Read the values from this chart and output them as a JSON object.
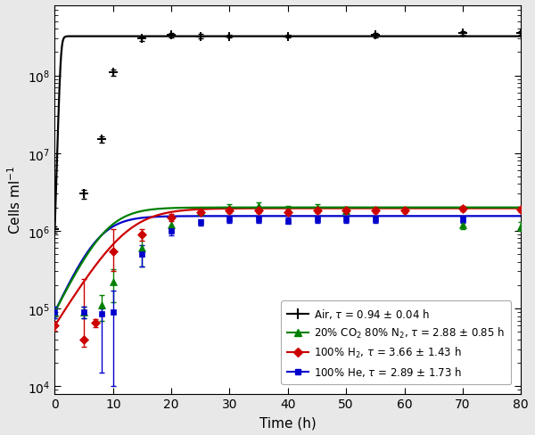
{
  "xlabel": "Time (h)",
  "ylabel": "Cells ml$^{-1}$",
  "xlim": [
    0,
    80
  ],
  "ylim_log": [
    8000,
    800000000.0
  ],
  "ytick_vals": [
    10000.0,
    100000.0,
    1000000.0,
    10000000.0,
    100000000.0
  ],
  "xticks": [
    0,
    10,
    20,
    30,
    40,
    50,
    60,
    70,
    80
  ],
  "air_color": "black",
  "co2_color": "#008000",
  "h2_color": "#cc0000",
  "he_color": "#0000cc",
  "air_params": {
    "N0": 1050000.0,
    "K": 320000000.0,
    "r": 5.5
  },
  "co2_params": {
    "N0": 90000.0,
    "K": 2000000.0,
    "r": 0.35
  },
  "h2_params": {
    "N0": 60000.0,
    "K": 1950000.0,
    "r": 0.28
  },
  "he_params": {
    "N0": 90000.0,
    "K": 1550000.0,
    "r": 0.38
  },
  "air_data_x": [
    0,
    5,
    8,
    10,
    15,
    20,
    25,
    30,
    40,
    55,
    70,
    80
  ],
  "air_data_y": [
    1050000.0,
    3000000.0,
    15000000.0,
    110000000.0,
    300000000.0,
    330000000.0,
    320000000.0,
    320000000.0,
    320000000.0,
    330000000.0,
    350000000.0,
    350000000.0
  ],
  "air_data_yerr_lo": [
    100000.0,
    400000.0,
    1500000.0,
    10000000.0,
    20000000.0,
    20000000.0,
    20000000.0,
    15000000.0,
    15000000.0,
    20000000.0,
    20000000.0,
    20000000.0
  ],
  "air_data_yerr_hi": [
    100000.0,
    400000.0,
    1500000.0,
    10000000.0,
    20000000.0,
    20000000.0,
    20000000.0,
    15000000.0,
    15000000.0,
    20000000.0,
    20000000.0,
    20000000.0
  ],
  "co2_data_x": [
    0,
    5,
    8,
    10,
    15,
    20,
    25,
    30,
    35,
    40,
    45,
    50,
    70,
    80
  ],
  "co2_data_y": [
    90000.0,
    90000.0,
    110000.0,
    220000.0,
    600000.0,
    1200000.0,
    1800000.0,
    2000000.0,
    2100000.0,
    1900000.0,
    2000000.0,
    1850000.0,
    1200000.0,
    1150000.0
  ],
  "co2_data_yerr": [
    15000.0,
    15000.0,
    40000.0,
    100000.0,
    250000.0,
    200000.0,
    200000.0,
    200000.0,
    200000.0,
    200000.0,
    200000.0,
    200000.0,
    150000.0,
    150000.0
  ],
  "h2_data_x": [
    0,
    5,
    7,
    10,
    15,
    20,
    25,
    30,
    35,
    40,
    45,
    50,
    55,
    60,
    70,
    80
  ],
  "h2_data_y": [
    60000.0,
    40000.0,
    65000.0,
    550000.0,
    900000.0,
    1500000.0,
    1750000.0,
    1850000.0,
    1850000.0,
    1750000.0,
    1850000.0,
    1850000.0,
    1850000.0,
    1850000.0,
    1950000.0,
    1900000.0
  ],
  "h2_data_yerr_lo": [
    8000.0,
    8000.0,
    8000.0,
    250000.0,
    150000.0,
    150000.0,
    150000.0,
    150000.0,
    150000.0,
    150000.0,
    150000.0,
    150000.0,
    150000.0,
    150000.0,
    150000.0,
    150000.0
  ],
  "h2_data_yerr_hi": [
    8000.0,
    200000.0,
    8000.0,
    500000.0,
    150000.0,
    150000.0,
    150000.0,
    150000.0,
    150000.0,
    150000.0,
    150000.0,
    150000.0,
    150000.0,
    150000.0,
    150000.0,
    150000.0
  ],
  "he_data_x": [
    0,
    5,
    8,
    10,
    15,
    20,
    25,
    30,
    35,
    40,
    45,
    50,
    55,
    70
  ],
  "he_data_y": [
    90000.0,
    90000.0,
    85000.0,
    90000.0,
    500000.0,
    1000000.0,
    1300000.0,
    1400000.0,
    1400000.0,
    1350000.0,
    1400000.0,
    1400000.0,
    1400000.0,
    1400000.0
  ],
  "he_data_yerr_lo": [
    15000.0,
    15000.0,
    70000.0,
    80000.0,
    150000.0,
    120000.0,
    120000.0,
    120000.0,
    120000.0,
    120000.0,
    120000.0,
    120000.0,
    120000.0,
    120000.0
  ],
  "he_data_yerr_hi": [
    15000.0,
    15000.0,
    15000.0,
    80000.0,
    150000.0,
    120000.0,
    120000.0,
    120000.0,
    120000.0,
    120000.0,
    120000.0,
    120000.0,
    120000.0,
    120000.0
  ],
  "legend_labels": [
    "Air, $\\tau$ = 0.94 ± 0.04 h",
    "20% CO$_2$ 80% N$_2$, $\\tau$ = 2.88 ± 0.85 h",
    "100% H$_2$, $\\tau$ = 3.66 ± 1.43 h",
    "100% He, $\\tau$ = 2.89 ± 1.73 h"
  ],
  "bg_color": "#ffffff",
  "plot_bg_color": "#ffffff",
  "outer_bg": "#e8e8e8"
}
